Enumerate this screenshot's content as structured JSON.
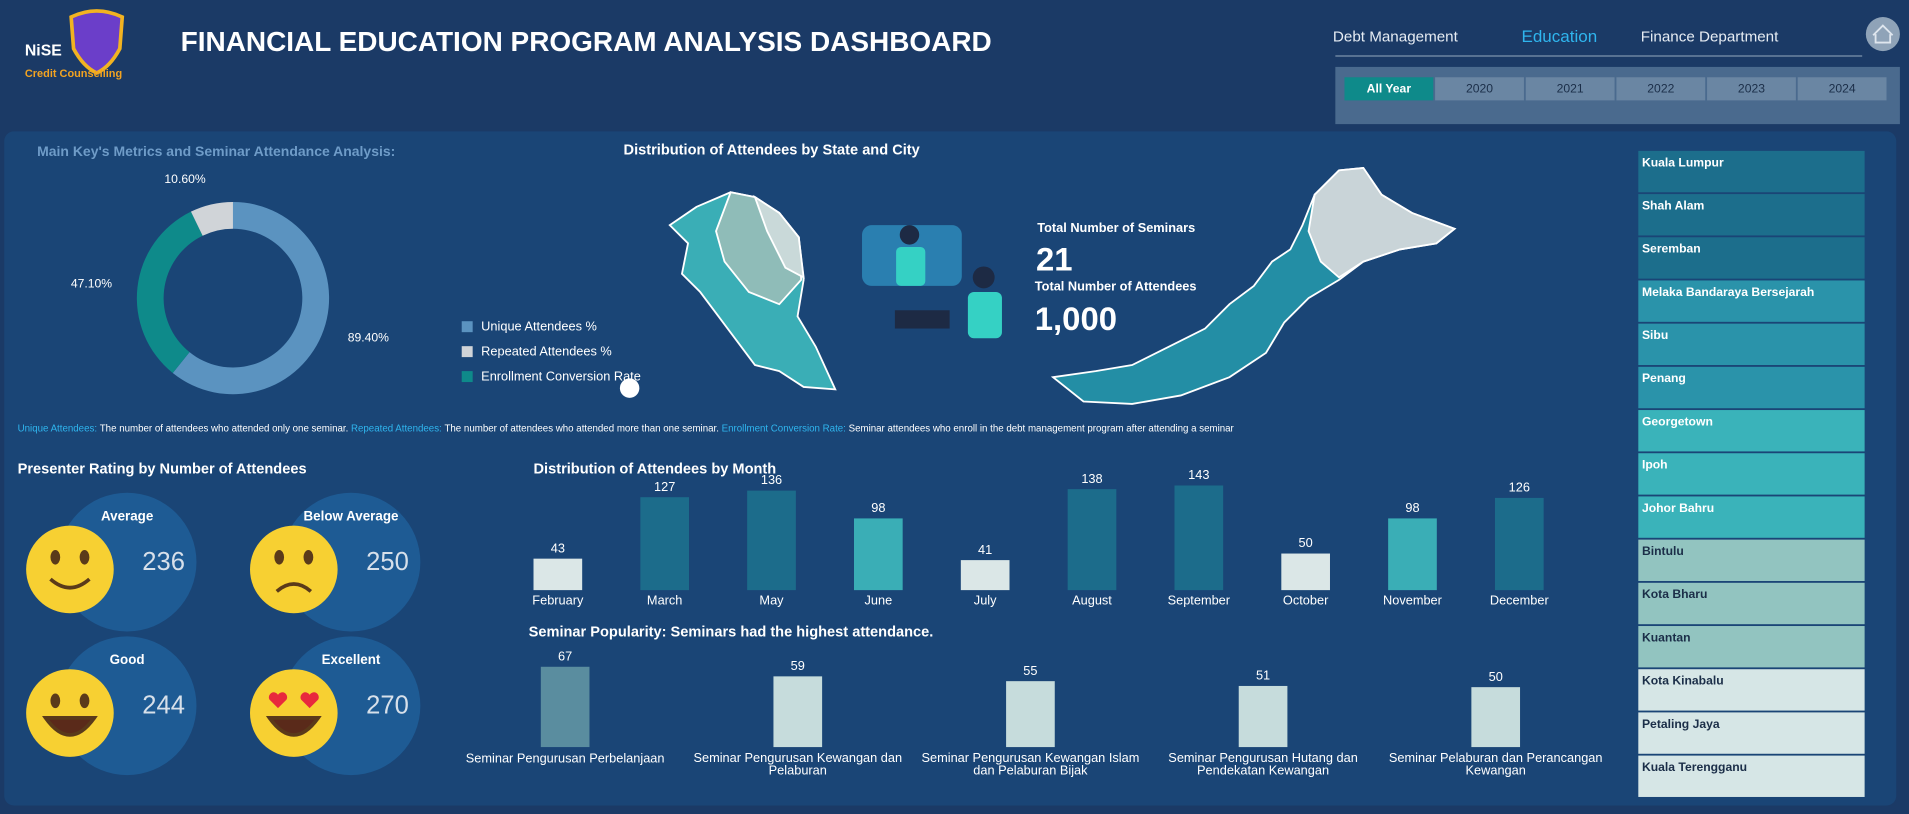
{
  "header": {
    "logo_top": "NiSE",
    "logo_bottom": "Credit Counselling",
    "title": "FINANCIAL EDUCATION PROGRAM ANALYSIS DASHBOARD"
  },
  "nav": [
    "Debt Management",
    "Education",
    "Finance Department"
  ],
  "year_filter": [
    "All Year",
    "2020",
    "2021",
    "2022",
    "2023",
    "2024"
  ],
  "definitions": [
    {
      "term": "Unique Attendees:",
      "text": "The number of attendees who attended only one seminar."
    },
    {
      "term": "Repeated Attendees:",
      "text": "The number of attendees who attended more than one seminar."
    },
    {
      "term": "Enrollment Conversion Rate:",
      "text": "Seminar attendees who enroll in the debt management program after attending a seminar"
    }
  ],
  "map": {
    "title": "Distribution of Attendees by State and City",
    "kpis": [
      {
        "label": "Total Number of Seminars",
        "value": "21"
      },
      {
        "label": "Total Number of Attendees",
        "value": "1,000"
      }
    ]
  },
  "presenter_rating": {
    "title": "Presenter Rating by Number of Attendees",
    "items": [
      {
        "label": "Average",
        "value": 236
      },
      {
        "label": "Below Average",
        "value": 250
      },
      {
        "label": "Good",
        "value": 244
      },
      {
        "label": "Excellent",
        "value": 270
      }
    ]
  },
  "cities": [
    "Kuala Lumpur",
    "Shah Alam",
    "Seremban",
    "Melaka Bandaraya Bersejarah",
    "Sibu",
    "Penang",
    "Georgetown",
    "Ipoh",
    "Johor Bahru",
    "Bintulu",
    "Kota Bharu",
    "Kuantan",
    "Kota Kinabalu",
    "Petaling Jaya",
    "Kuala Terengganu"
  ],
  "chart_data": [
    {
      "type": "pie",
      "title": "Main Key's Metrics and Seminar Attendance Analysis:",
      "categories": [
        "Unique Attendees %",
        "Repeated Attendees %",
        "Enrollment Conversion Rate"
      ],
      "values": [
        89.4,
        10.6,
        47.1
      ],
      "value_labels": [
        "89.40%",
        "10.60%",
        "47.10%"
      ],
      "colors": [
        "#5b93c0",
        "#d0d4d8",
        "#0e8a8a"
      ]
    },
    {
      "type": "bar",
      "title": "Distribution of Attendees by Month",
      "categories": [
        "February",
        "March",
        "May",
        "June",
        "July",
        "August",
        "September",
        "October",
        "November",
        "December"
      ],
      "values": [
        43,
        127,
        136,
        98,
        41,
        138,
        143,
        50,
        98,
        126
      ],
      "colors": [
        "#dbe7e7",
        "#1c6c8b",
        "#1c6c8b",
        "#3aaeb6",
        "#dbe7e7",
        "#1c6c8b",
        "#1c6c8b",
        "#dbe7e7",
        "#3aaeb6",
        "#1c6c8b"
      ]
    },
    {
      "type": "bar",
      "title": "Seminar Popularity: Seminars had the highest attendance.",
      "categories": [
        "Seminar Pengurusan Perbelanjaan",
        "Seminar Pengurusan Kewangan dan Pelaburan",
        "Seminar Pengurusan Kewangan Islam dan Pelaburan Bijak",
        "Seminar Pengurusan Hutang dan Pendekatan Kewangan",
        "Seminar Pelaburan dan Perancangan Kewangan"
      ],
      "values": [
        67,
        59,
        55,
        51,
        50
      ],
      "colors": [
        "#5a8d9f",
        "#c6dcdc",
        "#c6dcdc",
        "#c6dcdc",
        "#c6dcdc"
      ]
    }
  ]
}
